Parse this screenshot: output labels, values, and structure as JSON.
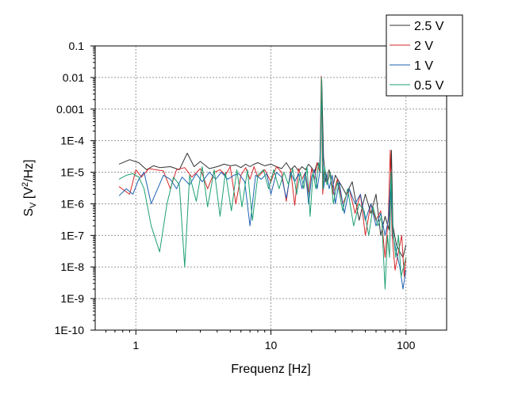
{
  "chart_data": {
    "type": "line",
    "xscale": "log",
    "yscale": "log",
    "xlim": [
      0.5,
      200
    ],
    "ylim": [
      1e-10,
      0.1
    ],
    "xlabel": "Frequenz [Hz]",
    "ylabel_main": "S",
    "ylabel_sub": "V",
    "ylabel_pre": " [V",
    "ylabel_sup": "2",
    "ylabel_post": "/Hz]",
    "grid": true,
    "legend_position": "top-right",
    "xticks": [
      {
        "value": 1,
        "label": "1"
      },
      {
        "value": 10,
        "label": "10"
      },
      {
        "value": 100,
        "label": "100"
      }
    ],
    "yticks": [
      {
        "value": 1e-10,
        "label": "1E-10"
      },
      {
        "value": 1e-09,
        "label": "1E-9"
      },
      {
        "value": 1e-08,
        "label": "1E-8"
      },
      {
        "value": 1e-07,
        "label": "1E-7"
      },
      {
        "value": 1e-06,
        "label": "1E-6"
      },
      {
        "value": 1e-05,
        "label": "1E-5"
      },
      {
        "value": 0.0001,
        "label": "1E-4"
      },
      {
        "value": 0.001,
        "label": "0.001"
      },
      {
        "value": 0.01,
        "label": "0.01"
      },
      {
        "value": 0.1,
        "label": "0.1"
      }
    ],
    "series": [
      {
        "name": "2.5 V",
        "color": "#333333",
        "x": [
          0.75,
          0.9,
          1.05,
          1.2,
          1.35,
          1.5,
          1.8,
          2.1,
          2.4,
          2.7,
          3.0,
          3.5,
          4.0,
          4.5,
          5.0,
          5.5,
          6.0,
          6.5,
          7.0,
          7.5,
          8.0,
          9.0,
          10.0,
          11.0,
          12.0,
          13.0,
          14.0,
          15.0,
          16.0,
          17.0,
          18.0,
          19.0,
          20.0,
          21.0,
          22.0,
          23.0,
          23.8,
          24.5,
          25.5,
          27.0,
          28.5,
          30.0,
          33.0,
          36.0,
          40.0,
          45.0,
          50.0,
          55.0,
          60.0,
          65.0,
          70.0,
          75.0,
          78.0,
          80.0,
          85.0,
          90.0,
          95.0,
          100.0
        ],
        "y": [
          1.8e-05,
          2.5e-05,
          2e-05,
          1.2e-05,
          1.6e-05,
          1.4e-05,
          1.5e-05,
          1.2e-05,
          4e-05,
          1.5e-05,
          2.2e-05,
          1.3e-05,
          1.5e-05,
          1.8e-05,
          1.6e-05,
          1.7e-05,
          1.4e-05,
          1.8e-05,
          1.5e-05,
          1.8e-05,
          2e-05,
          1.6e-05,
          1.8e-05,
          1.5e-05,
          1.3e-05,
          2e-05,
          1.2e-05,
          1.6e-05,
          1.1e-05,
          1.5e-05,
          1.2e-05,
          1.8e-05,
          1.4e-05,
          1e-05,
          2e-05,
          1.5e-05,
          0.008,
          3e-05,
          5e-06,
          1.2e-05,
          3e-06,
          8e-06,
          4e-06,
          2e-06,
          5e-06,
          3e-07,
          2e-06,
          5e-07,
          2e-06,
          1e-07,
          4e-07,
          1.5e-07,
          5e-05,
          2e-07,
          5e-08,
          3e-08,
          2e-08,
          5e-08
        ]
      },
      {
        "name": "2 V",
        "color": "#d62728",
        "x": [
          0.75,
          0.9,
          1.0,
          1.1,
          1.25,
          1.4,
          1.6,
          1.8,
          2.0,
          2.3,
          2.6,
          3.0,
          3.4,
          3.8,
          4.2,
          4.6,
          5.0,
          5.5,
          6.0,
          6.5,
          7.0,
          7.5,
          8.0,
          9.0,
          10.0,
          11.0,
          12.0,
          13.0,
          14.0,
          15.0,
          16.0,
          17.0,
          18.0,
          19.0,
          20.0,
          21.0,
          22.0,
          23.0,
          23.6,
          24.2,
          25.0,
          26.0,
          27.5,
          29.0,
          31.0,
          34.0,
          38.0,
          42.0,
          46.0,
          50.0,
          55.0,
          60.0,
          65.0,
          70.0,
          74.0,
          76.5,
          79.0,
          83.0,
          88.0,
          93.0,
          97.0,
          100.0
        ],
        "y": [
          3.5e-06,
          2e-06,
          1.2e-05,
          7e-06,
          1.3e-05,
          1.2e-05,
          1.1e-05,
          3e-06,
          1.2e-05,
          1.4e-05,
          7e-06,
          1.3e-05,
          3e-06,
          1e-05,
          1.2e-05,
          8e-06,
          1.5e-05,
          1e-06,
          8e-06,
          1.4e-05,
          6e-06,
          1.5e-05,
          7e-06,
          1.2e-05,
          5e-06,
          1.5e-05,
          1e-05,
          1.2e-06,
          1.2e-05,
          9e-07,
          1.3e-05,
          6e-06,
          1e-05,
          2e-06,
          1.3e-05,
          6e-06,
          2e-05,
          1e-05,
          0.011,
          2e-06,
          1.2e-05,
          5e-06,
          1e-05,
          2e-06,
          6e-06,
          1e-06,
          3e-06,
          5e-07,
          2e-06,
          1e-07,
          1e-06,
          3e-07,
          6e-07,
          2e-08,
          4e-07,
          5e-05,
          1e-07,
          8e-09,
          3e-08,
          1e-07,
          5e-09,
          2e-08
        ]
      },
      {
        "name": "1 V",
        "color": "#1f62b4",
        "x": [
          0.75,
          0.85,
          0.95,
          1.05,
          1.15,
          1.3,
          1.45,
          1.6,
          1.8,
          2.0,
          2.2,
          2.5,
          2.8,
          3.1,
          3.5,
          3.9,
          4.3,
          4.8,
          5.3,
          5.8,
          6.4,
          7.0,
          7.7,
          8.5,
          9.3,
          10.0,
          11.0,
          12.0,
          13.0,
          14.0,
          15.0,
          16.0,
          17.0,
          18.0,
          19.0,
          20.0,
          21.0,
          22.0,
          23.0,
          23.7,
          24.5,
          25.5,
          27.0,
          28.5,
          30.0,
          32.0,
          35.0,
          38.0,
          42.0,
          46.0,
          50.0,
          55.0,
          60.0,
          65.0,
          70.0,
          74.0,
          77.0,
          80.0,
          85.0,
          90.0,
          95.0,
          100.0
        ],
        "y": [
          1.8e-06,
          3e-06,
          2e-06,
          6e-06,
          1e-05,
          1e-06,
          3e-06,
          8e-06,
          6e-06,
          3e-06,
          7e-06,
          4e-06,
          9e-06,
          5e-06,
          1e-05,
          6e-06,
          1e-05,
          6e-06,
          8e-06,
          9e-06,
          5e-06,
          2e-07,
          8e-06,
          6e-06,
          9e-06,
          2e-06,
          1e-05,
          7e-06,
          1.5e-06,
          1e-05,
          5e-06,
          9e-06,
          3e-06,
          1e-05,
          1e-06,
          7e-06,
          1.2e-05,
          3e-06,
          1e-05,
          0.005,
          3e-06,
          1e-05,
          3e-06,
          8e-06,
          1e-06,
          5e-06,
          5e-07,
          3e-06,
          1e-06,
          2e-06,
          3e-07,
          1e-06,
          2e-07,
          5e-07,
          1e-07,
          3e-07,
          5e-06,
          1e-07,
          3e-08,
          1e-08,
          2e-09,
          8e-09
        ]
      },
      {
        "name": "0.5 V",
        "color": "#1ea072",
        "x": [
          0.75,
          0.85,
          0.95,
          1.05,
          1.15,
          1.3,
          1.5,
          1.7,
          1.9,
          2.1,
          2.3,
          2.5,
          2.8,
          3.1,
          3.4,
          3.8,
          4.2,
          4.6,
          5.1,
          5.6,
          6.1,
          6.7,
          7.3,
          8.0,
          8.8,
          9.6,
          10.5,
          11.5,
          12.5,
          13.5,
          14.5,
          15.5,
          16.5,
          17.5,
          18.5,
          19.5,
          20.5,
          21.5,
          22.5,
          23.2,
          23.7,
          24.3,
          25.0,
          26.0,
          27.5,
          29.0,
          31.0,
          34.0,
          37.0,
          41.0,
          45.0,
          49.0,
          53.0,
          57.0,
          62.0,
          66.0,
          70.0,
          73.0,
          75.5,
          77.5,
          80.0,
          84.0,
          88.0,
          92.0,
          96.0,
          100.0
        ],
        "y": [
          6e-06,
          8e-06,
          9e-06,
          7e-06,
          3e-06,
          2e-07,
          3e-08,
          1e-06,
          7e-06,
          4e-06,
          1e-08,
          8e-06,
          1.2e-06,
          1.5e-05,
          8e-07,
          1.2e-05,
          4e-07,
          1e-05,
          6e-07,
          1.2e-05,
          8e-07,
          1.2e-05,
          3e-07,
          8e-06,
          1.2e-05,
          3e-06,
          1.2e-05,
          3e-06,
          1e-05,
          4e-06,
          1.3e-05,
          2e-06,
          1e-05,
          3e-06,
          1.5e-05,
          4e-07,
          1e-05,
          3e-06,
          2e-05,
          1e-05,
          0.01,
          3e-06,
          1.5e-05,
          4e-06,
          1e-05,
          1e-06,
          5e-06,
          6e-07,
          3e-06,
          2e-07,
          1e-06,
          6e-07,
          1e-07,
          8e-07,
          2e-07,
          4e-07,
          2e-09,
          1e-07,
          2e-08,
          1e-05,
          1.5e-07,
          2e-08,
          1e-07,
          5e-09,
          1e-08,
          2e-08
        ]
      }
    ]
  }
}
